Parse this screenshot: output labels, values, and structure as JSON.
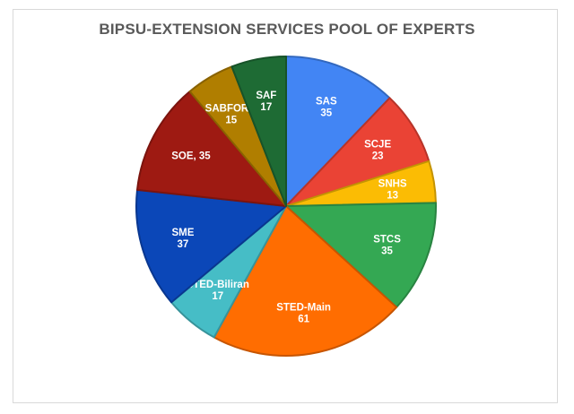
{
  "chart_data": {
    "type": "pie",
    "title": "BIPSU-EXTENSION SERVICES POOL OF EXPERTS",
    "slices": [
      {
        "label": "SAS",
        "value": 35,
        "color": "#4285f4",
        "label_format": "stacked"
      },
      {
        "label": "SCJE",
        "value": 23,
        "color": "#ea4335",
        "label_format": "stacked"
      },
      {
        "label": "SNHS",
        "value": 13,
        "color": "#fbbc04",
        "label_format": "stacked"
      },
      {
        "label": "STCS",
        "value": 35,
        "color": "#34a853",
        "label_format": "stacked"
      },
      {
        "label": "STED-Main",
        "value": 61,
        "color": "#ff6d01",
        "label_format": "stacked"
      },
      {
        "label": "STED-Biliran",
        "value": 17,
        "color": "#46bdc6",
        "label_format": "stacked"
      },
      {
        "label": "SME",
        "value": 37,
        "color": "#0b47b8",
        "label_format": "stacked"
      },
      {
        "label": "SOE",
        "value": 35,
        "color": "#9e1a12",
        "label_format": "inline"
      },
      {
        "label": "SABFORM",
        "value": 15,
        "color": "#b07e00",
        "label_format": "stacked"
      },
      {
        "label": "SAF",
        "value": 17,
        "color": "#1e6b34",
        "label_format": "stacked"
      }
    ]
  }
}
